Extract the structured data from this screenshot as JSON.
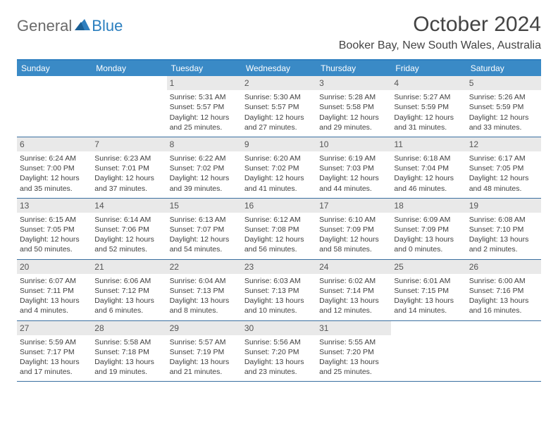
{
  "logo": {
    "text1": "General",
    "text2": "Blue",
    "color1": "#6a6a6a",
    "color2": "#2b7fbf"
  },
  "title": "October 2024",
  "location": "Booker Bay, New South Wales, Australia",
  "colors": {
    "header_bg": "#3a8ac6",
    "header_border": "#2f7fc0",
    "row_border": "#3a6fa0",
    "daynum_bg": "#e9e9e9",
    "text": "#3f3f3f"
  },
  "weekdays": [
    "Sunday",
    "Monday",
    "Tuesday",
    "Wednesday",
    "Thursday",
    "Friday",
    "Saturday"
  ],
  "firstDayOffset": 2,
  "daysInMonth": 31,
  "days": {
    "1": {
      "sunrise": "5:31 AM",
      "sunset": "5:57 PM",
      "daylight": "12 hours and 25 minutes."
    },
    "2": {
      "sunrise": "5:30 AM",
      "sunset": "5:57 PM",
      "daylight": "12 hours and 27 minutes."
    },
    "3": {
      "sunrise": "5:28 AM",
      "sunset": "5:58 PM",
      "daylight": "12 hours and 29 minutes."
    },
    "4": {
      "sunrise": "5:27 AM",
      "sunset": "5:59 PM",
      "daylight": "12 hours and 31 minutes."
    },
    "5": {
      "sunrise": "5:26 AM",
      "sunset": "5:59 PM",
      "daylight": "12 hours and 33 minutes."
    },
    "6": {
      "sunrise": "6:24 AM",
      "sunset": "7:00 PM",
      "daylight": "12 hours and 35 minutes."
    },
    "7": {
      "sunrise": "6:23 AM",
      "sunset": "7:01 PM",
      "daylight": "12 hours and 37 minutes."
    },
    "8": {
      "sunrise": "6:22 AM",
      "sunset": "7:02 PM",
      "daylight": "12 hours and 39 minutes."
    },
    "9": {
      "sunrise": "6:20 AM",
      "sunset": "7:02 PM",
      "daylight": "12 hours and 41 minutes."
    },
    "10": {
      "sunrise": "6:19 AM",
      "sunset": "7:03 PM",
      "daylight": "12 hours and 44 minutes."
    },
    "11": {
      "sunrise": "6:18 AM",
      "sunset": "7:04 PM",
      "daylight": "12 hours and 46 minutes."
    },
    "12": {
      "sunrise": "6:17 AM",
      "sunset": "7:05 PM",
      "daylight": "12 hours and 48 minutes."
    },
    "13": {
      "sunrise": "6:15 AM",
      "sunset": "7:05 PM",
      "daylight": "12 hours and 50 minutes."
    },
    "14": {
      "sunrise": "6:14 AM",
      "sunset": "7:06 PM",
      "daylight": "12 hours and 52 minutes."
    },
    "15": {
      "sunrise": "6:13 AM",
      "sunset": "7:07 PM",
      "daylight": "12 hours and 54 minutes."
    },
    "16": {
      "sunrise": "6:12 AM",
      "sunset": "7:08 PM",
      "daylight": "12 hours and 56 minutes."
    },
    "17": {
      "sunrise": "6:10 AM",
      "sunset": "7:09 PM",
      "daylight": "12 hours and 58 minutes."
    },
    "18": {
      "sunrise": "6:09 AM",
      "sunset": "7:09 PM",
      "daylight": "13 hours and 0 minutes."
    },
    "19": {
      "sunrise": "6:08 AM",
      "sunset": "7:10 PM",
      "daylight": "13 hours and 2 minutes."
    },
    "20": {
      "sunrise": "6:07 AM",
      "sunset": "7:11 PM",
      "daylight": "13 hours and 4 minutes."
    },
    "21": {
      "sunrise": "6:06 AM",
      "sunset": "7:12 PM",
      "daylight": "13 hours and 6 minutes."
    },
    "22": {
      "sunrise": "6:04 AM",
      "sunset": "7:13 PM",
      "daylight": "13 hours and 8 minutes."
    },
    "23": {
      "sunrise": "6:03 AM",
      "sunset": "7:13 PM",
      "daylight": "13 hours and 10 minutes."
    },
    "24": {
      "sunrise": "6:02 AM",
      "sunset": "7:14 PM",
      "daylight": "13 hours and 12 minutes."
    },
    "25": {
      "sunrise": "6:01 AM",
      "sunset": "7:15 PM",
      "daylight": "13 hours and 14 minutes."
    },
    "26": {
      "sunrise": "6:00 AM",
      "sunset": "7:16 PM",
      "daylight": "13 hours and 16 minutes."
    },
    "27": {
      "sunrise": "5:59 AM",
      "sunset": "7:17 PM",
      "daylight": "13 hours and 17 minutes."
    },
    "28": {
      "sunrise": "5:58 AM",
      "sunset": "7:18 PM",
      "daylight": "13 hours and 19 minutes."
    },
    "29": {
      "sunrise": "5:57 AM",
      "sunset": "7:19 PM",
      "daylight": "13 hours and 21 minutes."
    },
    "30": {
      "sunrise": "5:56 AM",
      "sunset": "7:20 PM",
      "daylight": "13 hours and 23 minutes."
    },
    "31": {
      "sunrise": "5:55 AM",
      "sunset": "7:20 PM",
      "daylight": "13 hours and 25 minutes."
    }
  },
  "labels": {
    "sunrise": "Sunrise:",
    "sunset": "Sunset:",
    "daylight": "Daylight:"
  }
}
